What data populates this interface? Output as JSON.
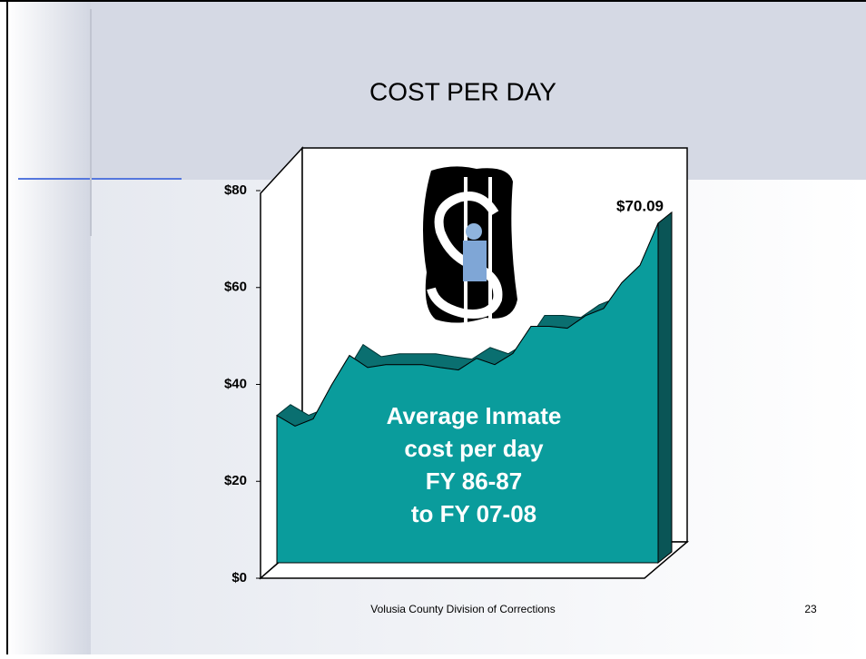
{
  "chart_data": {
    "type": "area",
    "title": "COST PER DAY",
    "values": [
      30.4,
      28.2,
      29.7,
      36.6,
      42.8,
      40.3,
      40.9,
      40.9,
      40.9,
      40.3,
      39.8,
      42.2,
      40.9,
      43.2,
      48.8,
      48.8,
      48.4,
      51.0,
      52.5,
      57.8,
      61.4,
      70.09
    ],
    "value_labels": [
      null,
      null,
      null,
      null,
      null,
      null,
      null,
      null,
      null,
      null,
      null,
      null,
      null,
      null,
      null,
      null,
      null,
      null,
      null,
      null,
      null,
      "$70.09"
    ],
    "color": "#0a9c9c",
    "ylim": [
      0,
      80
    ],
    "yticks": [
      {
        "value": 0,
        "label": "$0"
      },
      {
        "value": 20,
        "label": "$20"
      },
      {
        "value": 40,
        "label": "$40"
      },
      {
        "value": 60,
        "label": "$60"
      },
      {
        "value": 80,
        "label": "$80"
      }
    ],
    "annotation": [
      "Average Inmate",
      "cost per day",
      "FY 86-87",
      "to FY 07-08"
    ]
  },
  "footer": "Volusia County Division of Corrections",
  "page_number": "23"
}
